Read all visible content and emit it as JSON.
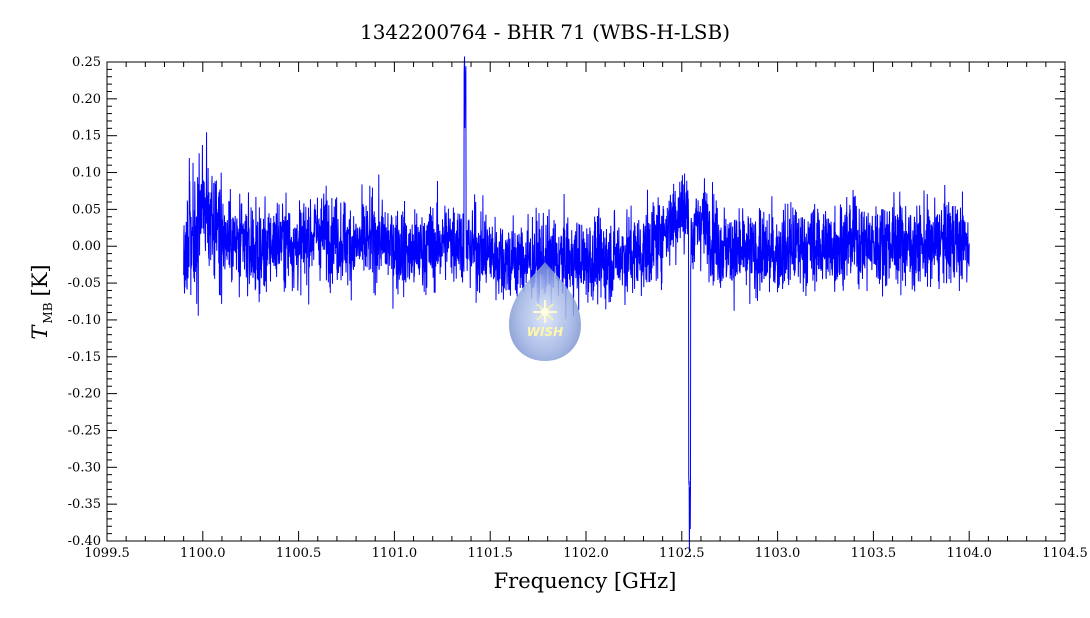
{
  "chart_data": {
    "type": "line",
    "title": "1342200764 - BHR 71 (WBS-H-LSB)",
    "xlabel": "Frequency [GHz]",
    "ylabel_main": "T",
    "ylabel_sub": "MB",
    "ylabel_unit": "[K]",
    "xlim": [
      1099.5,
      1104.5
    ],
    "ylim": [
      -0.4,
      0.25
    ],
    "x_ticks": [
      "1099.5",
      "1100.0",
      "1100.5",
      "1101.0",
      "1101.5",
      "1102.0",
      "1102.5",
      "1103.0",
      "1103.5",
      "1104.0",
      "1104.5"
    ],
    "y_ticks": [
      "0.25",
      "0.20",
      "0.15",
      "0.10",
      "0.05",
      "0.00",
      "-0.05",
      "-0.10",
      "-0.15",
      "-0.20",
      "-0.25",
      "-0.30",
      "-0.35",
      "-0.40"
    ],
    "line_color": "#0000ff",
    "series": [
      {
        "x": [
          1099.9,
          1100.0,
          1100.1,
          1100.2,
          1100.3,
          1100.4,
          1100.5,
          1100.6,
          1100.7,
          1100.8,
          1100.9,
          1101.0,
          1101.1,
          1101.2,
          1101.3,
          1101.37,
          1101.4,
          1101.5,
          1101.6,
          1101.7,
          1101.8,
          1101.9,
          1102.0,
          1102.1,
          1102.2,
          1102.3,
          1102.4,
          1102.5,
          1102.54,
          1102.6,
          1102.7,
          1102.8,
          1102.9,
          1103.0,
          1103.1,
          1103.2,
          1103.3,
          1103.4,
          1103.5,
          1103.6,
          1103.7,
          1103.8,
          1103.9,
          1104.0
        ],
        "y": [
          -0.02,
          0.04,
          0.02,
          0.0,
          -0.01,
          0.01,
          0.0,
          0.02,
          0.01,
          0.0,
          0.01,
          0.0,
          -0.01,
          0.0,
          0.01,
          0.21,
          0.0,
          -0.01,
          -0.02,
          -0.02,
          -0.02,
          -0.02,
          -0.02,
          -0.02,
          -0.01,
          -0.01,
          0.02,
          0.05,
          -0.34,
          0.04,
          0.0,
          -0.01,
          -0.01,
          -0.01,
          0.0,
          0.0,
          0.0,
          0.01,
          0.0,
          0.01,
          0.0,
          0.0,
          0.01,
          0.0
        ],
        "noise_rms": 0.04
      }
    ],
    "grid": false,
    "watermark_text": "WISH"
  }
}
